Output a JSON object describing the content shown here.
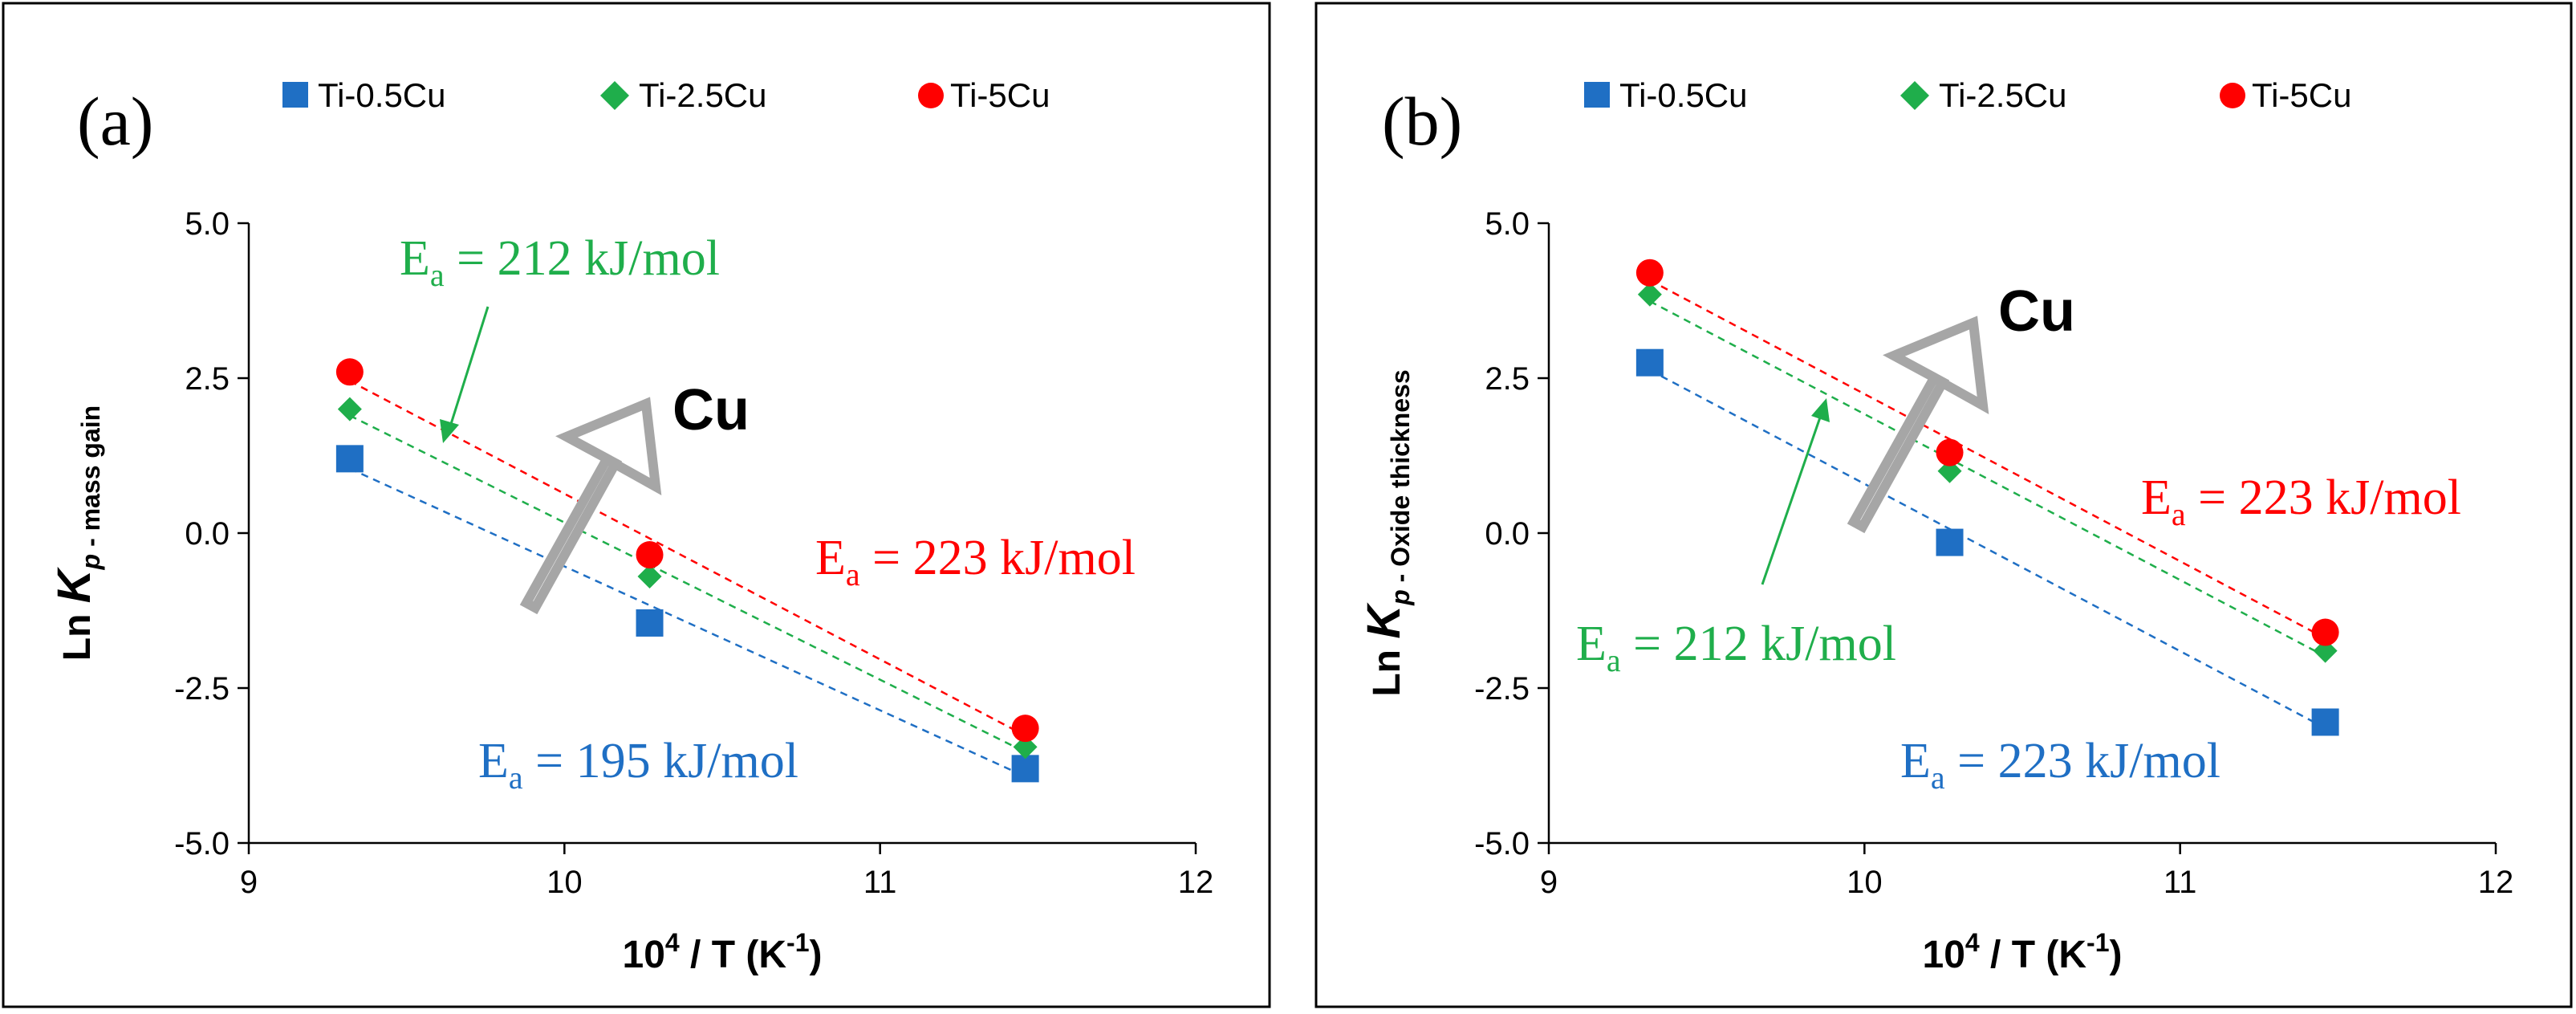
{
  "colors": {
    "ti_0_5cu": "#1f6fc4",
    "ti_2_5cu": "#1fae4b",
    "ti_5cu": "#ff0000",
    "arrow_gray": "#a6a6a6"
  },
  "legend": [
    "Ti-0.5Cu",
    "Ti-2.5Cu",
    "Ti-5Cu"
  ],
  "cu_text": "Cu",
  "chart_data": [
    {
      "type": "scatter",
      "panel_label": "(a)",
      "xlabel": "10⁴ / T (K⁻¹)",
      "xlabel_main": "10",
      "xlabel_sup": "4",
      "xlabel_mid": " / T (K",
      "xlabel_sup2": "-1",
      "xlabel_end": ")",
      "ylabel_main": "Ln ",
      "ylabel_k": "K",
      "ylabel_p": "p",
      "ylabel_sub": " - mass gain",
      "xlim": [
        9,
        12
      ],
      "ylim": [
        -5.0,
        5.0
      ],
      "x_ticks": [
        9,
        10,
        11,
        12
      ],
      "x_tick_labels": [
        "9",
        "10",
        "11",
        "12"
      ],
      "y_ticks": [
        5.0,
        2.5,
        0.0,
        -2.5,
        -5.0
      ],
      "y_tick_labels": [
        "5.0",
        "2.5",
        "0.0",
        "-2.5",
        "-5.0"
      ],
      "x": [
        9.32,
        10.27,
        11.46
      ],
      "series": [
        {
          "name": "Ti-0.5Cu",
          "marker": "square",
          "values": [
            1.2,
            -1.45,
            -3.8
          ]
        },
        {
          "name": "Ti-2.5Cu",
          "marker": "diamond",
          "values": [
            2.0,
            -0.7,
            -3.45
          ]
        },
        {
          "name": "Ti-5Cu",
          "marker": "circle",
          "values": [
            2.6,
            -0.35,
            -3.15
          ]
        }
      ],
      "annotations": [
        {
          "text": "212 kJ/mol",
          "series": "Ti-2.5Cu"
        },
        {
          "text": "223 kJ/mol",
          "series": "Ti-5Cu"
        },
        {
          "text": "195 kJ/mol",
          "series": "Ti-0.5Cu"
        }
      ]
    },
    {
      "type": "scatter",
      "panel_label": "(b)",
      "xlabel": "10⁴ / T (K⁻¹)",
      "xlabel_main": "10",
      "xlabel_sup": "4",
      "xlabel_mid": " / T (K",
      "xlabel_sup2": "-1",
      "xlabel_end": ")",
      "ylabel_main": "Ln ",
      "ylabel_k": "K",
      "ylabel_p": "p",
      "ylabel_sub": " - Oxide thickness",
      "xlim": [
        9,
        12
      ],
      "ylim": [
        -5.0,
        5.0
      ],
      "x_ticks": [
        9,
        10,
        11,
        12
      ],
      "x_tick_labels": [
        "9",
        "10",
        "11",
        "12"
      ],
      "y_ticks": [
        5.0,
        2.5,
        0.0,
        -2.5,
        -5.0
      ],
      "y_tick_labels": [
        "5.0",
        "2.5",
        "0.0",
        "-2.5",
        "-5.0"
      ],
      "x": [
        9.32,
        10.27,
        11.46
      ],
      "series": [
        {
          "name": "Ti-0.5Cu",
          "marker": "square",
          "values": [
            2.75,
            -0.15,
            -3.05
          ]
        },
        {
          "name": "Ti-2.5Cu",
          "marker": "diamond",
          "values": [
            3.85,
            1.0,
            -1.9
          ]
        },
        {
          "name": "Ti-5Cu",
          "marker": "circle",
          "values": [
            4.2,
            1.3,
            -1.6
          ]
        }
      ],
      "annotations": [
        {
          "text": "223 kJ/mol",
          "series": "Ti-5Cu"
        },
        {
          "text": "212 kJ/mol",
          "series": "Ti-2.5Cu"
        },
        {
          "text": "223 kJ/mol",
          "series": "Ti-0.5Cu"
        }
      ]
    }
  ]
}
